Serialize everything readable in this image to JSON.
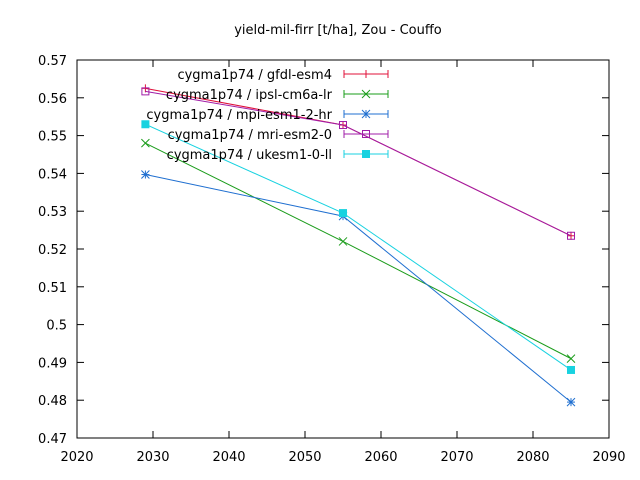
{
  "chart_data": {
    "type": "line",
    "title": "yield-mil-firr [t/ha], Zou - Couffo",
    "xlabel": "",
    "ylabel": "",
    "xlim": [
      2020,
      2090
    ],
    "ylim": [
      0.47,
      0.57
    ],
    "x_ticks": [
      2020,
      2030,
      2040,
      2050,
      2060,
      2070,
      2080,
      2090
    ],
    "y_ticks": [
      0.47,
      0.48,
      0.49,
      0.5,
      0.51,
      0.52,
      0.53,
      0.54,
      0.55,
      0.56,
      0.57
    ],
    "x_tick_labels": [
      "2020",
      "2030",
      "2040",
      "2050",
      "2060",
      "2070",
      "2080",
      "2090"
    ],
    "y_tick_labels": [
      "0.47",
      "0.48",
      "0.49",
      "0.5",
      "0.51",
      "0.52",
      "0.53",
      "0.54",
      "0.55",
      "0.56",
      "0.57"
    ],
    "grid": false,
    "legend_position": "top-right",
    "series": [
      {
        "name": "cygma1p74 / gfdl-esm4",
        "color": "#e0103a",
        "marker": "plus",
        "x": [
          2029,
          2055,
          2085
        ],
        "y": [
          0.5625,
          0.5528,
          0.5235
        ]
      },
      {
        "name": "cygma1p74 / ipsl-cm6a-lr",
        "color": "#1a9c1a",
        "marker": "cross",
        "x": [
          2029,
          2055,
          2085
        ],
        "y": [
          0.548,
          0.522,
          0.491
        ]
      },
      {
        "name": "cygma1p74 / mpi-esm1-2-hr",
        "color": "#1f6fd0",
        "marker": "star",
        "x": [
          2029,
          2055,
          2085
        ],
        "y": [
          0.5397,
          0.5287,
          0.4795
        ]
      },
      {
        "name": "cygma1p74 / mri-esm2-0",
        "color": "#a01ea8",
        "marker": "open-square",
        "x": [
          2029,
          2055,
          2085
        ],
        "y": [
          0.5617,
          0.5528,
          0.5235
        ]
      },
      {
        "name": "cygma1p74 / ukesm1-0-ll",
        "color": "#18d2e0",
        "marker": "filled-square",
        "x": [
          2029,
          2055,
          2085
        ],
        "y": [
          0.553,
          0.5295,
          0.488
        ]
      }
    ]
  }
}
